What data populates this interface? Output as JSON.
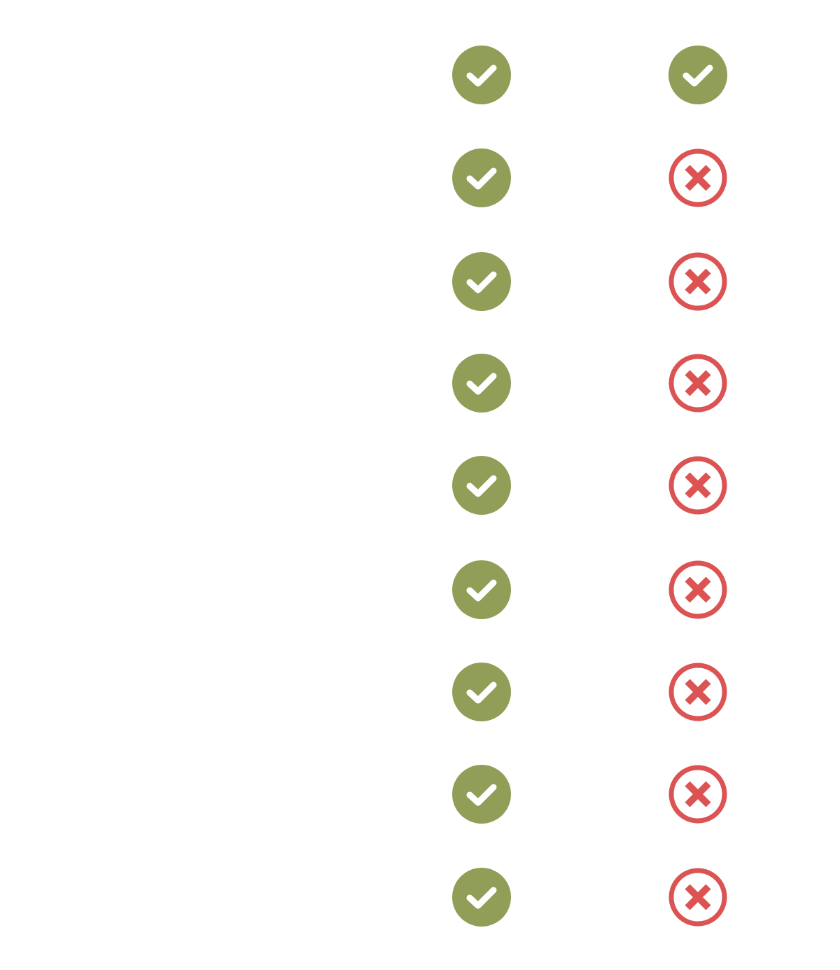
{
  "colors": {
    "check": "#919e58",
    "cross": "#dc5353",
    "background": "#ffffff"
  },
  "columns": [
    {
      "name": "column-a",
      "cells": [
        "check-icon",
        "check-icon",
        "check-icon",
        "check-icon",
        "check-icon",
        "check-icon",
        "check-icon",
        "check-icon",
        "check-icon"
      ]
    },
    {
      "name": "column-b",
      "cells": [
        "check-icon",
        "cross-icon",
        "cross-icon",
        "cross-icon",
        "cross-icon",
        "cross-icon",
        "cross-icon",
        "cross-icon",
        "cross-icon"
      ]
    }
  ]
}
